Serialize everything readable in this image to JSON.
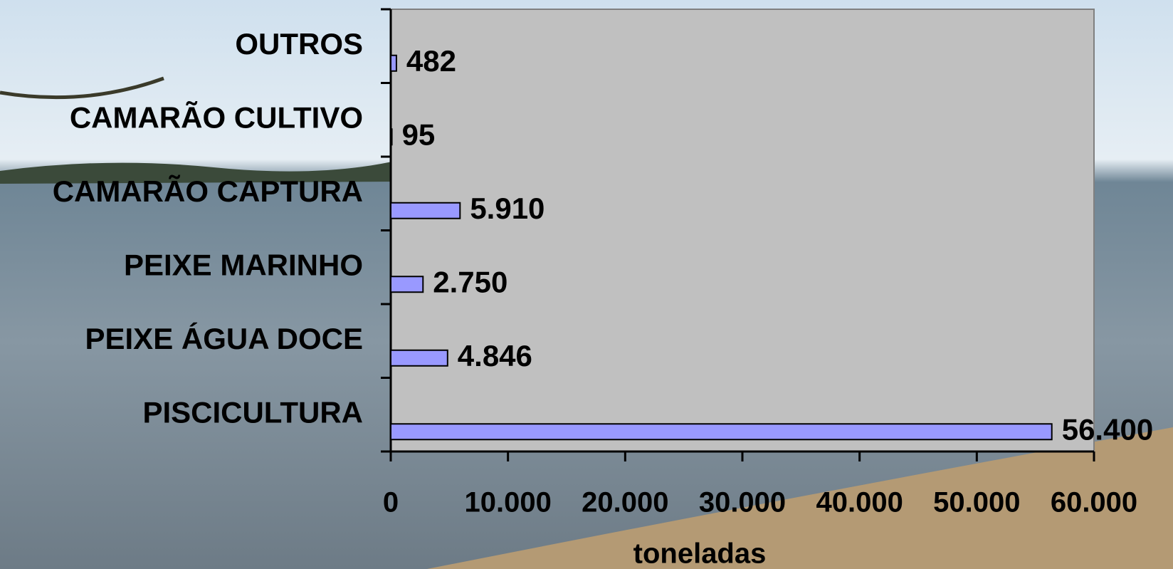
{
  "chart_data": {
    "type": "barh",
    "categories": [
      "OUTROS",
      "CAMARÃO CULTIVO",
      "CAMARÃO CAPTURA",
      "PEIXE MARINHO",
      "PEIXE ÁGUA DOCE",
      "PISCICULTURA"
    ],
    "values": [
      482,
      95,
      5910,
      2750,
      4846,
      56400
    ],
    "value_labels": [
      "482",
      "95",
      "5.910",
      "2.750",
      "4.846",
      "56.400"
    ],
    "color": "#9999ff",
    "xlabel": "toneladas",
    "xlim": [
      0,
      60000
    ],
    "xticks": [
      0,
      {
        "value": 10000,
        "label": "10.000"
      },
      {
        "value": 20000,
        "label": "20.000"
      },
      {
        "value": 30000,
        "label": "30.000"
      },
      {
        "value": 40000,
        "label": "40.000"
      },
      {
        "value": 50000,
        "label": "50.000"
      },
      {
        "value": 60000,
        "label": "60.000"
      }
    ]
  }
}
